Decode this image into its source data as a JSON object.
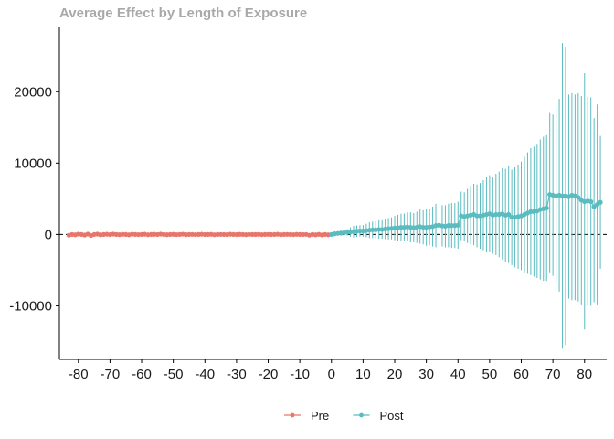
{
  "chart_data": {
    "type": "scatter",
    "title": "Average Effect by Length of Exposure",
    "xlabel": "",
    "ylabel": "",
    "xlim": [
      -86,
      87
    ],
    "ylim": [
      -17500,
      29000
    ],
    "x_ticks": [
      "-80",
      "-70",
      "-60",
      "-50",
      "-40",
      "-30",
      "-20",
      "-10",
      "0",
      "10",
      "20",
      "30",
      "40",
      "50",
      "60",
      "70",
      "80"
    ],
    "y_ticks": [
      "-10000",
      "0",
      "10000",
      "20000"
    ],
    "reference_line": {
      "y": 0,
      "style": "dashed"
    },
    "grid": false,
    "legend": {
      "position": "bottom",
      "entries": [
        "Pre",
        "Post"
      ]
    },
    "colors": {
      "Pre": "#e8756b",
      "Post": "#5bbcc0"
    },
    "series": [
      {
        "name": "Pre",
        "x": [
          -83,
          -82,
          -81,
          -80,
          -79,
          -78,
          -77,
          -76,
          -75,
          -74,
          -73,
          -72,
          -71,
          -70,
          -69,
          -68,
          -67,
          -66,
          -65,
          -64,
          -63,
          -62,
          -61,
          -60,
          -59,
          -58,
          -57,
          -56,
          -55,
          -54,
          -53,
          -52,
          -51,
          -50,
          -49,
          -48,
          -47,
          -46,
          -45,
          -44,
          -43,
          -42,
          -41,
          -40,
          -39,
          -38,
          -37,
          -36,
          -35,
          -34,
          -33,
          -32,
          -31,
          -30,
          -29,
          -28,
          -27,
          -26,
          -25,
          -24,
          -23,
          -22,
          -21,
          -20,
          -19,
          -18,
          -17,
          -16,
          -15,
          -14,
          -13,
          -12,
          -11,
          -10,
          -9,
          -8,
          -7,
          -6,
          -5,
          -4,
          -3,
          -2,
          -1
        ],
        "y": [
          -100,
          0,
          -50,
          50,
          0,
          -80,
          50,
          -150,
          0,
          50,
          -50,
          0,
          30,
          -20,
          50,
          0,
          -30,
          20,
          0,
          -50,
          40,
          0,
          -20,
          0,
          30,
          -40,
          0,
          20,
          -10,
          50,
          0,
          -30,
          0,
          20,
          -20,
          0,
          40,
          -30,
          0,
          10,
          -20,
          0,
          30,
          -10,
          0,
          20,
          -40,
          0,
          10,
          0,
          -20,
          30,
          0,
          -10,
          20,
          0,
          -30,
          10,
          0,
          0,
          20,
          -20,
          0,
          10,
          -10,
          0,
          30,
          -30,
          0,
          10,
          0,
          -20,
          20,
          0,
          -10,
          10,
          -100,
          0,
          -50,
          20,
          -80,
          0,
          -50
        ],
        "ci_low": [
          -300,
          -200,
          -250,
          -150,
          -200,
          -280,
          -150,
          -350,
          -200,
          -150,
          -250,
          -200,
          -170,
          -220,
          -150,
          -200,
          -230,
          -180,
          -200,
          -250,
          -160,
          -200,
          -220,
          -200,
          -170,
          -240,
          -200,
          -180,
          -210,
          -150,
          -200,
          -230,
          -200,
          -180,
          -220,
          -200,
          -160,
          -230,
          -200,
          -190,
          -220,
          -200,
          -170,
          -210,
          -200,
          -180,
          -240,
          -200,
          -190,
          -200,
          -220,
          -170,
          -200,
          -210,
          -180,
          -200,
          -230,
          -190,
          -200,
          -200,
          -180,
          -220,
          -200,
          -190,
          -210,
          -200,
          -170,
          -230,
          -200,
          -190,
          -200,
          -220,
          -180,
          -200,
          -210,
          -190,
          -300,
          -200,
          -250,
          -180,
          -280,
          -200,
          -250
        ],
        "ci_high": [
          100,
          200,
          150,
          250,
          200,
          120,
          250,
          50,
          200,
          250,
          150,
          200,
          230,
          180,
          250,
          200,
          170,
          220,
          200,
          150,
          240,
          200,
          180,
          200,
          230,
          160,
          200,
          220,
          190,
          250,
          200,
          170,
          200,
          220,
          180,
          200,
          240,
          170,
          200,
          210,
          180,
          200,
          230,
          190,
          200,
          220,
          160,
          200,
          210,
          200,
          180,
          230,
          200,
          190,
          220,
          200,
          170,
          210,
          200,
          200,
          220,
          180,
          200,
          210,
          190,
          200,
          230,
          170,
          200,
          210,
          200,
          180,
          220,
          200,
          190,
          210,
          100,
          200,
          150,
          220,
          120,
          200,
          150
        ]
      },
      {
        "name": "Post",
        "x": [
          0,
          1,
          2,
          3,
          4,
          5,
          6,
          7,
          8,
          9,
          10,
          11,
          12,
          13,
          14,
          15,
          16,
          17,
          18,
          19,
          20,
          21,
          22,
          23,
          24,
          25,
          26,
          27,
          28,
          29,
          30,
          31,
          32,
          33,
          34,
          35,
          36,
          37,
          38,
          39,
          40,
          41,
          42,
          43,
          44,
          45,
          46,
          47,
          48,
          49,
          50,
          51,
          52,
          53,
          54,
          55,
          56,
          57,
          58,
          59,
          60,
          61,
          62,
          63,
          64,
          65,
          66,
          67,
          68,
          69,
          70,
          71,
          72,
          73,
          74,
          75,
          76,
          77,
          78,
          79,
          80,
          81,
          82,
          83,
          84,
          85
        ],
        "y": [
          0,
          100,
          150,
          200,
          250,
          300,
          350,
          400,
          450,
          500,
          500,
          550,
          600,
          650,
          650,
          700,
          700,
          750,
          800,
          850,
          900,
          950,
          1000,
          1000,
          1050,
          1000,
          950,
          1000,
          1100,
          1000,
          1000,
          1050,
          1100,
          1250,
          1300,
          1200,
          1150,
          1250,
          1250,
          1250,
          1300,
          2600,
          2500,
          2600,
          2700,
          2800,
          2600,
          2600,
          2700,
          2800,
          2900,
          2700,
          2800,
          2800,
          2900,
          2700,
          2800,
          2400,
          2400,
          2500,
          2600,
          2800,
          3000,
          3200,
          3200,
          3300,
          3500,
          3600,
          3700,
          5600,
          5500,
          5400,
          5500,
          5400,
          5400,
          5300,
          5500,
          5400,
          5200,
          4800,
          4600,
          4700,
          4600,
          3900,
          4200,
          4500
        ],
        "ci_low": [
          -100,
          -100,
          -150,
          -200,
          -200,
          -150,
          -300,
          -400,
          -350,
          -300,
          -300,
          -400,
          -500,
          -500,
          -550,
          -600,
          -600,
          -650,
          -700,
          -700,
          -800,
          -850,
          -900,
          -950,
          -1000,
          -1100,
          -1100,
          -1200,
          -1300,
          -1400,
          -1600,
          -1500,
          -1700,
          -1800,
          -1600,
          -1700,
          -1800,
          -1800,
          -1900,
          -1900,
          -2000,
          -800,
          -900,
          -1200,
          -1400,
          -1500,
          -1800,
          -2000,
          -2200,
          -2400,
          -2500,
          -2700,
          -2900,
          -3200,
          -3500,
          -3800,
          -4000,
          -4300,
          -4600,
          -4800,
          -5000,
          -5300,
          -5500,
          -5700,
          -5900,
          -6100,
          -6300,
          -6500,
          -6500,
          -5300,
          -5800,
          -7000,
          -8000,
          -16000,
          -15500,
          -9000,
          -9200,
          -9200,
          -9400,
          -9800,
          -13300,
          -9900,
          -10000,
          -9500,
          -9800,
          -4800
        ],
        "ci_high": [
          100,
          300,
          450,
          600,
          700,
          750,
          1000,
          1200,
          1250,
          1300,
          1300,
          1500,
          1700,
          1800,
          1850,
          2000,
          2000,
          2150,
          2300,
          2400,
          2600,
          2750,
          2900,
          2950,
          3100,
          3100,
          3000,
          3200,
          3500,
          3400,
          3600,
          3600,
          3900,
          4300,
          4200,
          4100,
          4100,
          4300,
          4400,
          4400,
          4600,
          6000,
          5900,
          6400,
          6800,
          7100,
          7000,
          7200,
          7600,
          8000,
          8300,
          8100,
          8500,
          8800,
          9300,
          9200,
          9600,
          9100,
          9400,
          9800,
          10200,
          10900,
          11500,
          12100,
          12300,
          12700,
          13300,
          13700,
          13900,
          17000,
          16800,
          17800,
          19000,
          26800,
          26300,
          19600,
          19800,
          19600,
          19800,
          19400,
          22600,
          19300,
          19200,
          16300,
          18200,
          13800
        ]
      }
    ]
  }
}
